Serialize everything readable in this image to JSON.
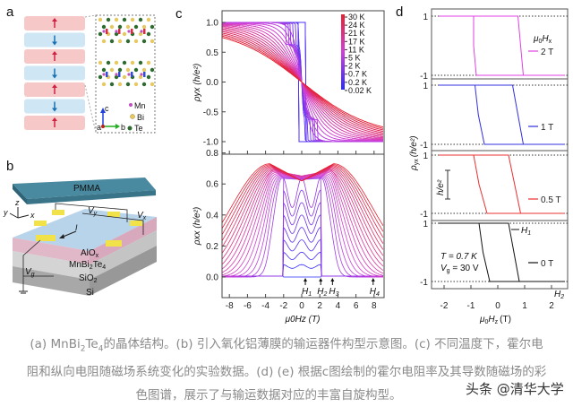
{
  "panel_a": {
    "label": "a",
    "legend": [
      "Mn",
      "Bi",
      "Te"
    ],
    "axes": {
      "c": "c",
      "a": "a",
      "b": "b"
    },
    "legend_colors": {
      "Mn": "#c050c0",
      "Bi": "#e8c860",
      "Te": "#2e6b2e"
    },
    "stripe_colors": {
      "up": "#f7c8c8",
      "down": "#cfe6f5"
    }
  },
  "panel_b": {
    "label": "b",
    "pmma": "PMMA",
    "alox": {
      "base": "AlO",
      "sub": "x"
    },
    "mbt": {
      "p1": "MnBi",
      "s1": "2",
      "p2": "Te",
      "s2": "4"
    },
    "sio2": {
      "base": "SiO",
      "sub": "2"
    },
    "si": "Si",
    "vy": {
      "base": "V",
      "sub": "y"
    },
    "vx": {
      "base": "V",
      "sub": "x"
    },
    "vg": {
      "base": "V",
      "sub": "g"
    },
    "current": "I",
    "axes": {
      "z": "z",
      "y": "y",
      "x": "x"
    }
  },
  "panel_c": {
    "label": "c",
    "top_ylabel": {
      "rho": "ρ",
      "sub": "yx",
      "unit": "(h/e²)"
    },
    "bottom_ylabel": {
      "rho": "ρ",
      "sub": "xx",
      "unit": "(h/e²)"
    },
    "xlabel": {
      "mu": "μ",
      "s0": "0",
      "H": "H",
      "sz": "z",
      "unit": "(T)"
    },
    "top_yticks": [
      "1.0",
      "0.5",
      "0.0",
      "-0.5",
      "-1.0"
    ],
    "bottom_yticks": [
      "0.8",
      "0.6",
      "0.4",
      "0.2",
      "0.0"
    ],
    "xticks": [
      "-8",
      "-6",
      "-4",
      "-2",
      "0",
      "2",
      "4",
      "6",
      "8"
    ],
    "colorbar_labels": [
      "30 K",
      "24 K",
      "21 K",
      "17 K",
      "11 K",
      "5 K",
      "2 K",
      "0.7 K",
      "0.2 K",
      "0.02 K"
    ],
    "markers": [
      {
        "name": "H",
        "sub": "1",
        "x": 0.4
      },
      {
        "name": "H",
        "sub": "2",
        "x": 2.1
      },
      {
        "name": "H",
        "sub": "3",
        "x": 3.4
      },
      {
        "name": "H",
        "sub": "4",
        "x": 7.9
      }
    ]
  },
  "panel_d": {
    "label": "d",
    "ylabel": {
      "rho": "ρ",
      "sub": "yx",
      "unit": "(h/e²)"
    },
    "scale_bar": "h/e²",
    "legend_title": {
      "mu": "μ",
      "s0": "0",
      "H": "H",
      "sx": "x"
    },
    "xticks": [
      "-2",
      "-1",
      "0",
      "1",
      "2"
    ],
    "xlabel": {
      "mu": "μ",
      "s0": "0",
      "H": "H",
      "sz": "z",
      "unit": "(T)"
    },
    "conditions": {
      "T": "T = 0.7 K",
      "Vg": "V",
      "Vg_sub": "g",
      "Vg_val": " = 30 V"
    },
    "markers": [
      {
        "name": "H",
        "sub": "1"
      },
      {
        "name": "H",
        "sub": "2"
      }
    ],
    "ytick_top": "1",
    "ytick_bottom": "-1"
  },
  "chart_data": [
    {
      "type": "line",
      "panel": "c-top",
      "ylabel": "ρyx (h/e²)",
      "xlabel": "μ0Hz (T)",
      "xlim": [
        -9,
        9
      ],
      "ylim": [
        -1.05,
        1.05
      ],
      "series_temperatures_K": [
        "0.02",
        "0.2",
        "0.7",
        "2",
        "5",
        "11",
        "17",
        "21",
        "24",
        "30"
      ],
      "low_T_plateau": [
        1.0,
        -1.0
      ],
      "coercive_field_T": 0.4,
      "colormap": [
        "#2a2aff",
        "#d040d8",
        "#e82030"
      ]
    },
    {
      "type": "line",
      "panel": "c-bottom",
      "ylabel": "ρxx (h/e²)",
      "xlabel": "μ0Hz (T)",
      "xlim": [
        -9,
        9
      ],
      "ylim": [
        -0.13,
        0.8
      ],
      "high_T_peak_value": 0.73,
      "high_T_peak_field_T": 3.5,
      "high_T_center_dip": 0.62,
      "low_T_plateau_edges_T": [
        -2.1,
        2.1
      ]
    },
    {
      "type": "line",
      "panel": "d",
      "xlim": [
        -2.5,
        2.5
      ],
      "series": [
        {
          "name": "2 T",
          "color": "#e040e0",
          "switch_down_T": [
            -0.9,
            -0.8
          ],
          "switch_up_T": [
            0.75,
            0.95
          ]
        },
        {
          "name": "1 T",
          "color": "#3030e0",
          "switch_down_T": [
            -0.85,
            -0.5
          ],
          "switch_up_T": [
            0.55,
            0.95
          ]
        },
        {
          "name": "0.5 T",
          "color": "#e83030",
          "switch_down_T": [
            -0.9,
            -0.4
          ],
          "switch_up_T": [
            0.4,
            0.85
          ]
        },
        {
          "name": "0 T",
          "color": "#111111",
          "switch_down_T": [
            -0.7,
            -0.3
          ],
          "switch_up_T": [
            0.4,
            0.8
          ]
        }
      ]
    }
  ],
  "caption": {
    "l1a": "(a) MnBi",
    "l1s1": "2",
    "l1b": "Te",
    "l1s2": "4",
    "l1c": "的晶体结构。(b) 引入氧化铝薄膜的输运器件构型示意图。(c) 不同温度下，霍尔电",
    "l2": "阻和纵向电阻随磁场系统变化的实验数据。(d) (e) 根据c图绘制的霍尔电阻率及其导数随磁场的彩",
    "l3": "色图谱，展示了与输运数据对应的丰富自旋构型。"
  },
  "watermark": "头条 @清华大学"
}
